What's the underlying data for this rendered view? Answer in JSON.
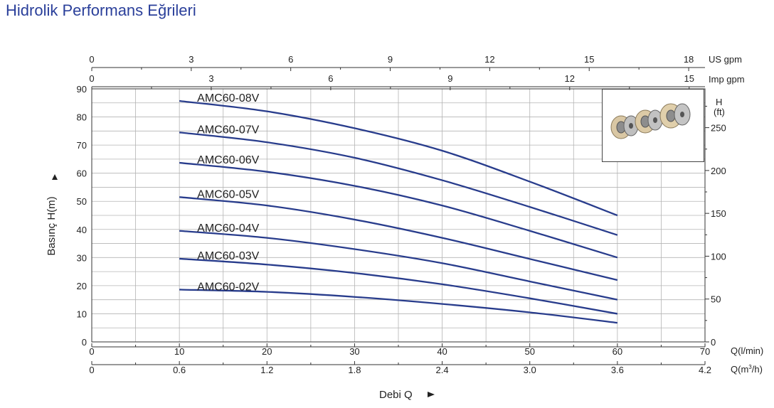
{
  "page": {
    "title": "Hidrolik Performans Eğrileri"
  },
  "colors": {
    "curve": "#283c8c",
    "grid": "#b4b4b4",
    "title": "#2a3f9a",
    "axis": "#333333"
  },
  "chart_data": {
    "type": "line",
    "ylabel": "Basınç H(m)",
    "xlabel": "Debi Q",
    "x_unit_label": "Q(l/min)",
    "x2_unit_label": "Q(m³/h)",
    "x2_unit_base": "Q(m",
    "x2_unit_sup": "3",
    "x2_unit_tail": "/h)",
    "top_us_label": "US gpm",
    "top_imp_label": "Imp gpm",
    "right_unit_label": "H",
    "right_unit_label2": "(ft)",
    "xlim": [
      0,
      70
    ],
    "ylim": [
      0,
      90
    ],
    "grid": true,
    "x_ticks": [
      0,
      10,
      20,
      30,
      40,
      50,
      60,
      70
    ],
    "x2_ticks": [
      "0",
      "0.6",
      "1.2",
      "1.8",
      "2.4",
      "3.0",
      "3.6",
      "4.2"
    ],
    "y_ticks": [
      0,
      10,
      20,
      30,
      40,
      50,
      60,
      70,
      80,
      90
    ],
    "ft_ticks": [
      0,
      50,
      100,
      150,
      200,
      250
    ],
    "us_gpm_ticks": [
      0,
      3,
      6,
      9,
      12,
      15,
      18
    ],
    "imp_gpm_ticks": [
      0,
      3,
      6,
      9,
      12,
      15
    ],
    "series": [
      {
        "name": "AMC60-08V",
        "x": [
          10,
          20,
          30,
          40,
          50,
          60
        ],
        "y": [
          85.7,
          82,
          76,
          68,
          57,
          45
        ]
      },
      {
        "name": "AMC60-07V",
        "x": [
          10,
          20,
          30,
          40,
          50,
          60
        ],
        "y": [
          74.5,
          71,
          65.5,
          57.5,
          48,
          38
        ]
      },
      {
        "name": "AMC60-06V",
        "x": [
          10,
          20,
          30,
          40,
          50,
          60
        ],
        "y": [
          63.7,
          60.5,
          55.5,
          48.5,
          39.5,
          30
        ]
      },
      {
        "name": "AMC60-05V",
        "x": [
          10,
          20,
          30,
          40,
          50,
          60
        ],
        "y": [
          51.5,
          48.5,
          43.5,
          37,
          29.5,
          22
        ]
      },
      {
        "name": "AMC60-04V",
        "x": [
          10,
          20,
          30,
          40,
          50,
          60
        ],
        "y": [
          39.5,
          37,
          33,
          28,
          21.5,
          15
        ]
      },
      {
        "name": "AMC60-03V",
        "x": [
          10,
          20,
          30,
          40,
          50,
          60
        ],
        "y": [
          29.6,
          27.5,
          24.5,
          20.5,
          15.5,
          10
        ]
      },
      {
        "name": "AMC60-02V",
        "x": [
          10,
          20,
          30,
          40,
          50,
          60
        ],
        "y": [
          18.6,
          17.8,
          16,
          13.5,
          10.5,
          6.8
        ]
      }
    ]
  }
}
